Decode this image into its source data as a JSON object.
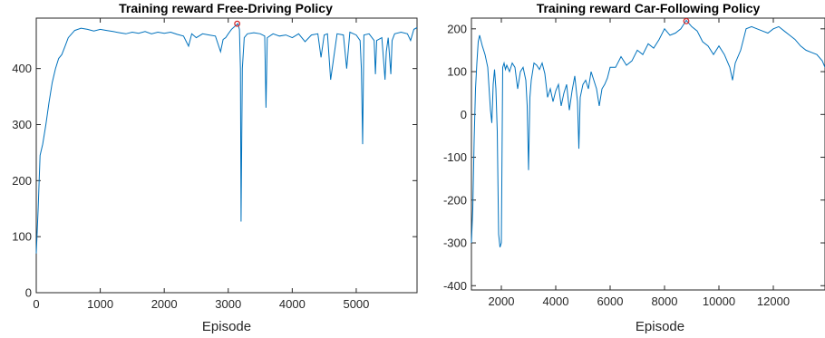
{
  "colors": {
    "line": "#0072bd",
    "marker": "#d62728",
    "axis": "#262626"
  },
  "chart_data": [
    {
      "type": "line",
      "title": "Training reward Free-Driving Policy",
      "xlabel": "Episode",
      "ylabel": "",
      "xlim": [
        0,
        5950
      ],
      "ylim": [
        0,
        490
      ],
      "xticks": [
        0,
        1000,
        2000,
        3000,
        4000,
        5000
      ],
      "xtick_labels": [
        "0",
        "1000",
        "2000",
        "3000",
        "4000",
        "5000"
      ],
      "yticks": [
        0,
        100,
        200,
        300,
        400
      ],
      "ytick_labels": [
        "0",
        "100",
        "200",
        "300",
        "400"
      ],
      "grid": false,
      "series": [
        {
          "x": [
            0,
            30,
            60,
            100,
            150,
            200,
            250,
            300,
            350,
            400,
            450,
            500,
            600,
            700,
            800,
            900,
            1000,
            1100,
            1200,
            1300,
            1400,
            1500,
            1600,
            1700,
            1800,
            1900,
            2000,
            2100,
            2200,
            2300,
            2380,
            2430,
            2500,
            2600,
            2700,
            2800,
            2880,
            2920,
            2960,
            3000,
            3050,
            3100,
            3150,
            3175,
            3190,
            3200,
            3220,
            3250,
            3300,
            3400,
            3500,
            3570,
            3590,
            3610,
            3700,
            3800,
            3900,
            4000,
            4100,
            4200,
            4300,
            4400,
            4450,
            4500,
            4550,
            4600,
            4700,
            4800,
            4850,
            4900,
            5000,
            5060,
            5080,
            5100,
            5120,
            5200,
            5280,
            5300,
            5320,
            5400,
            5450,
            5470,
            5500,
            5540,
            5560,
            5600,
            5700,
            5800,
            5850,
            5900,
            5950
          ],
          "y": [
            70,
            150,
            245,
            265,
            300,
            340,
            375,
            400,
            418,
            425,
            440,
            455,
            468,
            472,
            470,
            467,
            470,
            468,
            466,
            464,
            462,
            465,
            463,
            466,
            462,
            465,
            463,
            465,
            461,
            458,
            440,
            462,
            455,
            462,
            460,
            458,
            430,
            452,
            455,
            462,
            470,
            475,
            480,
            470,
            400,
            127,
            400,
            455,
            462,
            464,
            462,
            458,
            330,
            455,
            462,
            458,
            460,
            455,
            462,
            448,
            460,
            462,
            420,
            460,
            462,
            380,
            462,
            460,
            400,
            465,
            460,
            450,
            400,
            265,
            460,
            462,
            450,
            390,
            450,
            455,
            380,
            430,
            455,
            390,
            450,
            462,
            465,
            462,
            450,
            470,
            473
          ]
        }
      ],
      "annotations": [
        {
          "type": "marker",
          "x": 3140,
          "y": 480
        }
      ]
    },
    {
      "type": "line",
      "title": "Training reward Car-Following Policy",
      "xlabel": "Episode",
      "ylabel": "",
      "xlim": [
        900,
        13900
      ],
      "ylim": [
        -410,
        225
      ],
      "xticks": [
        2000,
        4000,
        6000,
        8000,
        10000,
        12000
      ],
      "xtick_labels": [
        "2000",
        "4000",
        "6000",
        "8000",
        "10000",
        "12000"
      ],
      "yticks": [
        -400,
        -300,
        -200,
        -100,
        0,
        100,
        200
      ],
      "ytick_labels": [
        "-400",
        "-300",
        "-200",
        "-100",
        "0",
        "100",
        "200"
      ],
      "grid": false,
      "series": [
        {
          "x": [
            900,
            950,
            1000,
            1050,
            1100,
            1150,
            1200,
            1300,
            1400,
            1500,
            1550,
            1600,
            1650,
            1700,
            1750,
            1800,
            1850,
            1900,
            1950,
            2000,
            2050,
            2100,
            2150,
            2200,
            2300,
            2400,
            2500,
            2600,
            2700,
            2800,
            2900,
            2950,
            3000,
            3050,
            3100,
            3200,
            3300,
            3400,
            3500,
            3600,
            3700,
            3800,
            3900,
            4000,
            4100,
            4200,
            4300,
            4400,
            4500,
            4600,
            4700,
            4800,
            4850,
            4900,
            5000,
            5100,
            5200,
            5300,
            5400,
            5500,
            5600,
            5700,
            5800,
            5900,
            6000,
            6200,
            6400,
            6600,
            6800,
            7000,
            7200,
            7400,
            7600,
            7800,
            8000,
            8200,
            8400,
            8600,
            8800,
            9000,
            9200,
            9400,
            9600,
            9800,
            10000,
            10200,
            10400,
            10500,
            10600,
            10800,
            11000,
            11200,
            11400,
            11600,
            11800,
            12000,
            12200,
            12400,
            12600,
            12800,
            13000,
            13200,
            13400,
            13600,
            13800,
            13900
          ],
          "y": [
            -300,
            -220,
            -60,
            60,
            120,
            170,
            185,
            160,
            140,
            110,
            60,
            10,
            -20,
            70,
            105,
            60,
            -40,
            -280,
            -310,
            -300,
            110,
            120,
            105,
            115,
            100,
            120,
            110,
            60,
            100,
            110,
            80,
            20,
            -130,
            40,
            80,
            120,
            115,
            105,
            120,
            95,
            40,
            60,
            30,
            55,
            70,
            20,
            50,
            70,
            10,
            55,
            90,
            30,
            -80,
            40,
            70,
            80,
            60,
            100,
            80,
            60,
            20,
            60,
            70,
            85,
            110,
            110,
            135,
            115,
            125,
            150,
            140,
            165,
            155,
            175,
            200,
            185,
            190,
            200,
            220,
            205,
            195,
            170,
            160,
            140,
            160,
            140,
            110,
            80,
            120,
            150,
            200,
            205,
            200,
            195,
            190,
            200,
            205,
            195,
            185,
            175,
            160,
            150,
            145,
            140,
            125,
            110
          ]
        }
      ],
      "annotations": [
        {
          "type": "marker",
          "x": 8800,
          "y": 218
        }
      ]
    }
  ]
}
